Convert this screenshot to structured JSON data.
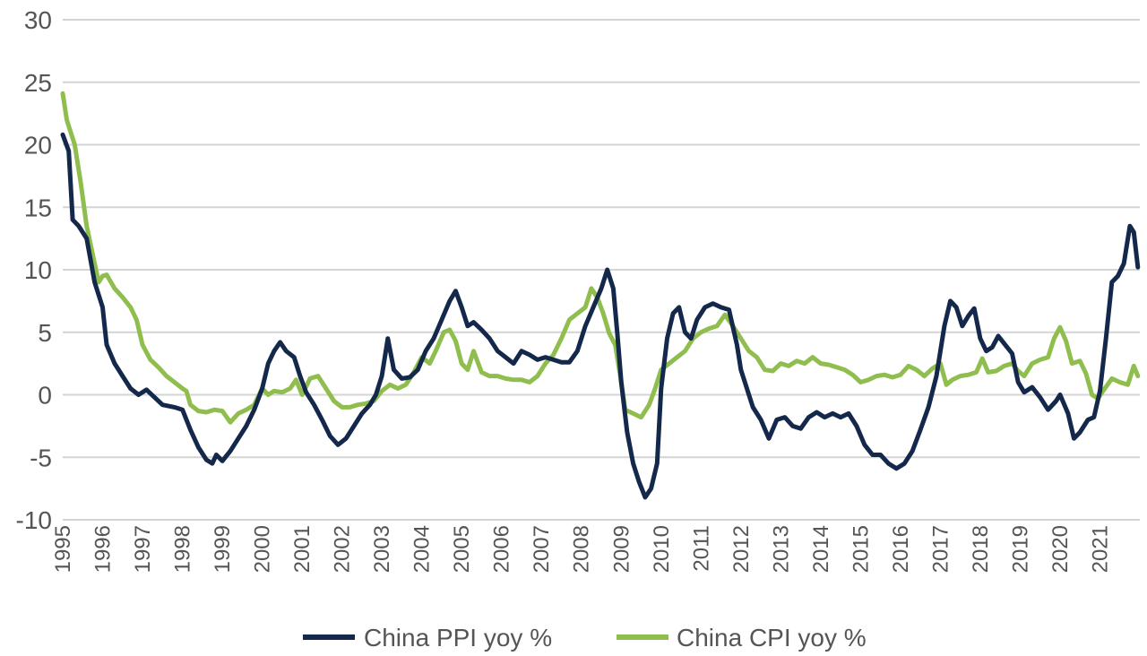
{
  "chart_data": {
    "type": "line",
    "title": "",
    "xlabel": "",
    "ylabel": "",
    "ylim": [
      -10,
      30
    ],
    "yticks": [
      -10,
      -5,
      0,
      5,
      10,
      15,
      20,
      25,
      30
    ],
    "xlim": [
      1995,
      2022
    ],
    "xticks": [
      "1995",
      "1996",
      "1997",
      "1998",
      "1999",
      "2000",
      "2001",
      "2002",
      "2003",
      "2004",
      "2005",
      "2006",
      "2007",
      "2008",
      "2009",
      "2010",
      "2011",
      "2012",
      "2013",
      "2014",
      "2015",
      "2016",
      "2017",
      "2018",
      "2019",
      "2020",
      "2021"
    ],
    "grid": true,
    "legend_position": "bottom",
    "series": [
      {
        "name": "China PPI yoy %",
        "color": "#14284b",
        "points": [
          [
            1995.0,
            20.8
          ],
          [
            1995.15,
            19.5
          ],
          [
            1995.25,
            14.0
          ],
          [
            1995.4,
            13.5
          ],
          [
            1995.6,
            12.5
          ],
          [
            1995.8,
            9.0
          ],
          [
            1996.0,
            7.0
          ],
          [
            1996.1,
            4.0
          ],
          [
            1996.3,
            2.5
          ],
          [
            1996.5,
            1.5
          ],
          [
            1996.7,
            0.5
          ],
          [
            1996.9,
            0.0
          ],
          [
            1997.1,
            0.4
          ],
          [
            1997.3,
            -0.2
          ],
          [
            1997.5,
            -0.8
          ],
          [
            1997.8,
            -1.0
          ],
          [
            1998.0,
            -1.2
          ],
          [
            1998.2,
            -2.8
          ],
          [
            1998.4,
            -4.2
          ],
          [
            1998.6,
            -5.2
          ],
          [
            1998.75,
            -5.5
          ],
          [
            1998.85,
            -4.8
          ],
          [
            1999.0,
            -5.3
          ],
          [
            1999.2,
            -4.5
          ],
          [
            1999.4,
            -3.5
          ],
          [
            1999.6,
            -2.5
          ],
          [
            1999.8,
            -1.2
          ],
          [
            2000.0,
            0.5
          ],
          [
            2000.15,
            2.5
          ],
          [
            2000.3,
            3.5
          ],
          [
            2000.45,
            4.2
          ],
          [
            2000.6,
            3.5
          ],
          [
            2000.8,
            3.0
          ],
          [
            2000.95,
            1.5
          ],
          [
            2001.1,
            0.2
          ],
          [
            2001.3,
            -0.8
          ],
          [
            2001.5,
            -2.0
          ],
          [
            2001.7,
            -3.3
          ],
          [
            2001.9,
            -4.0
          ],
          [
            2002.1,
            -3.5
          ],
          [
            2002.3,
            -2.5
          ],
          [
            2002.5,
            -1.5
          ],
          [
            2002.7,
            -0.8
          ],
          [
            2002.85,
            0.0
          ],
          [
            2003.0,
            1.5
          ],
          [
            2003.15,
            4.5
          ],
          [
            2003.3,
            2.0
          ],
          [
            2003.5,
            1.3
          ],
          [
            2003.7,
            1.4
          ],
          [
            2003.9,
            2.0
          ],
          [
            2004.1,
            3.5
          ],
          [
            2004.3,
            4.5
          ],
          [
            2004.5,
            6.0
          ],
          [
            2004.7,
            7.5
          ],
          [
            2004.85,
            8.3
          ],
          [
            2005.0,
            7.0
          ],
          [
            2005.15,
            5.5
          ],
          [
            2005.3,
            5.8
          ],
          [
            2005.5,
            5.2
          ],
          [
            2005.7,
            4.5
          ],
          [
            2005.9,
            3.5
          ],
          [
            2006.1,
            3.0
          ],
          [
            2006.3,
            2.5
          ],
          [
            2006.5,
            3.5
          ],
          [
            2006.7,
            3.2
          ],
          [
            2006.9,
            2.8
          ],
          [
            2007.1,
            3.0
          ],
          [
            2007.3,
            2.8
          ],
          [
            2007.5,
            2.6
          ],
          [
            2007.7,
            2.6
          ],
          [
            2007.9,
            3.5
          ],
          [
            2008.1,
            5.5
          ],
          [
            2008.3,
            7.0
          ],
          [
            2008.5,
            8.5
          ],
          [
            2008.65,
            10.0
          ],
          [
            2008.8,
            8.5
          ],
          [
            2008.9,
            5.0
          ],
          [
            2009.0,
            1.0
          ],
          [
            2009.15,
            -3.0
          ],
          [
            2009.3,
            -5.5
          ],
          [
            2009.45,
            -7.0
          ],
          [
            2009.6,
            -8.2
          ],
          [
            2009.75,
            -7.5
          ],
          [
            2009.9,
            -5.5
          ],
          [
            2010.0,
            0.5
          ],
          [
            2010.15,
            4.5
          ],
          [
            2010.3,
            6.5
          ],
          [
            2010.45,
            7.0
          ],
          [
            2010.6,
            5.0
          ],
          [
            2010.75,
            4.5
          ],
          [
            2010.9,
            6.0
          ],
          [
            2011.1,
            7.0
          ],
          [
            2011.3,
            7.3
          ],
          [
            2011.5,
            7.0
          ],
          [
            2011.7,
            6.8
          ],
          [
            2011.9,
            4.0
          ],
          [
            2012.0,
            2.0
          ],
          [
            2012.15,
            0.5
          ],
          [
            2012.3,
            -1.0
          ],
          [
            2012.5,
            -2.0
          ],
          [
            2012.7,
            -3.5
          ],
          [
            2012.9,
            -2.0
          ],
          [
            2013.1,
            -1.8
          ],
          [
            2013.3,
            -2.5
          ],
          [
            2013.5,
            -2.7
          ],
          [
            2013.7,
            -1.8
          ],
          [
            2013.9,
            -1.4
          ],
          [
            2014.1,
            -1.8
          ],
          [
            2014.3,
            -1.5
          ],
          [
            2014.5,
            -1.8
          ],
          [
            2014.7,
            -1.5
          ],
          [
            2014.9,
            -2.5
          ],
          [
            2015.1,
            -4.0
          ],
          [
            2015.3,
            -4.8
          ],
          [
            2015.5,
            -4.8
          ],
          [
            2015.7,
            -5.5
          ],
          [
            2015.9,
            -5.9
          ],
          [
            2016.1,
            -5.5
          ],
          [
            2016.3,
            -4.5
          ],
          [
            2016.5,
            -2.8
          ],
          [
            2016.7,
            -1.0
          ],
          [
            2016.9,
            1.5
          ],
          [
            2017.1,
            5.5
          ],
          [
            2017.25,
            7.5
          ],
          [
            2017.4,
            7.0
          ],
          [
            2017.55,
            5.5
          ],
          [
            2017.7,
            6.3
          ],
          [
            2017.85,
            6.9
          ],
          [
            2018.0,
            4.5
          ],
          [
            2018.15,
            3.5
          ],
          [
            2018.3,
            3.8
          ],
          [
            2018.45,
            4.7
          ],
          [
            2018.6,
            4.1
          ],
          [
            2018.8,
            3.3
          ],
          [
            2018.95,
            1.0
          ],
          [
            2019.1,
            0.2
          ],
          [
            2019.3,
            0.6
          ],
          [
            2019.5,
            -0.2
          ],
          [
            2019.7,
            -1.2
          ],
          [
            2019.9,
            -0.5
          ],
          [
            2020.0,
            0.0
          ],
          [
            2020.2,
            -1.5
          ],
          [
            2020.35,
            -3.5
          ],
          [
            2020.5,
            -3.0
          ],
          [
            2020.7,
            -2.0
          ],
          [
            2020.85,
            -1.8
          ],
          [
            2021.0,
            0.3
          ],
          [
            2021.15,
            4.5
          ],
          [
            2021.3,
            9.0
          ],
          [
            2021.45,
            9.5
          ],
          [
            2021.6,
            10.5
          ],
          [
            2021.75,
            13.5
          ],
          [
            2021.85,
            13.0
          ],
          [
            2021.95,
            10.2
          ]
        ]
      },
      {
        "name": "China CPI yoy %",
        "color": "#8fbe4f",
        "points": [
          [
            1995.0,
            24.1
          ],
          [
            1995.1,
            22.0
          ],
          [
            1995.2,
            21.0
          ],
          [
            1995.3,
            20.0
          ],
          [
            1995.45,
            17.0
          ],
          [
            1995.6,
            13.5
          ],
          [
            1995.8,
            10.5
          ],
          [
            1995.9,
            9.0
          ],
          [
            1996.0,
            9.5
          ],
          [
            1996.1,
            9.6
          ],
          [
            1996.3,
            8.5
          ],
          [
            1996.5,
            7.8
          ],
          [
            1996.7,
            7.0
          ],
          [
            1996.85,
            6.0
          ],
          [
            1997.0,
            4.0
          ],
          [
            1997.2,
            2.8
          ],
          [
            1997.4,
            2.2
          ],
          [
            1997.6,
            1.5
          ],
          [
            1997.8,
            1.0
          ],
          [
            1998.0,
            0.5
          ],
          [
            1998.1,
            0.3
          ],
          [
            1998.2,
            -0.8
          ],
          [
            1998.4,
            -1.3
          ],
          [
            1998.6,
            -1.4
          ],
          [
            1998.8,
            -1.2
          ],
          [
            1999.0,
            -1.3
          ],
          [
            1999.2,
            -2.2
          ],
          [
            1999.4,
            -1.5
          ],
          [
            1999.6,
            -1.2
          ],
          [
            1999.8,
            -0.8
          ],
          [
            2000.0,
            0.5
          ],
          [
            2000.15,
            0.0
          ],
          [
            2000.3,
            0.3
          ],
          [
            2000.5,
            0.2
          ],
          [
            2000.7,
            0.5
          ],
          [
            2000.85,
            1.2
          ],
          [
            2001.0,
            0.0
          ],
          [
            2001.2,
            1.3
          ],
          [
            2001.4,
            1.5
          ],
          [
            2001.6,
            0.5
          ],
          [
            2001.8,
            -0.5
          ],
          [
            2002.0,
            -1.0
          ],
          [
            2002.2,
            -1.0
          ],
          [
            2002.4,
            -0.8
          ],
          [
            2002.6,
            -0.7
          ],
          [
            2002.8,
            -0.5
          ],
          [
            2003.0,
            0.3
          ],
          [
            2003.2,
            0.8
          ],
          [
            2003.4,
            0.5
          ],
          [
            2003.6,
            0.8
          ],
          [
            2003.8,
            1.8
          ],
          [
            2004.0,
            3.0
          ],
          [
            2004.2,
            2.5
          ],
          [
            2004.35,
            3.5
          ],
          [
            2004.55,
            5.0
          ],
          [
            2004.7,
            5.2
          ],
          [
            2004.85,
            4.3
          ],
          [
            2005.0,
            2.5
          ],
          [
            2005.15,
            2.0
          ],
          [
            2005.3,
            3.5
          ],
          [
            2005.5,
            1.8
          ],
          [
            2005.7,
            1.5
          ],
          [
            2005.9,
            1.5
          ],
          [
            2006.1,
            1.3
          ],
          [
            2006.3,
            1.2
          ],
          [
            2006.5,
            1.2
          ],
          [
            2006.7,
            1.0
          ],
          [
            2006.9,
            1.5
          ],
          [
            2007.1,
            2.5
          ],
          [
            2007.3,
            3.2
          ],
          [
            2007.5,
            4.5
          ],
          [
            2007.7,
            6.0
          ],
          [
            2007.9,
            6.5
          ],
          [
            2008.1,
            7.0
          ],
          [
            2008.25,
            8.5
          ],
          [
            2008.4,
            7.8
          ],
          [
            2008.55,
            6.5
          ],
          [
            2008.7,
            4.9
          ],
          [
            2008.85,
            4.0
          ],
          [
            2009.0,
            1.0
          ],
          [
            2009.1,
            -1.2
          ],
          [
            2009.3,
            -1.5
          ],
          [
            2009.5,
            -1.8
          ],
          [
            2009.7,
            -0.8
          ],
          [
            2009.85,
            0.5
          ],
          [
            2010.0,
            2.0
          ],
          [
            2010.2,
            2.5
          ],
          [
            2010.4,
            3.0
          ],
          [
            2010.6,
            3.5
          ],
          [
            2010.8,
            4.5
          ],
          [
            2011.0,
            5.0
          ],
          [
            2011.2,
            5.3
          ],
          [
            2011.4,
            5.5
          ],
          [
            2011.6,
            6.4
          ],
          [
            2011.8,
            5.5
          ],
          [
            2012.0,
            4.5
          ],
          [
            2012.2,
            3.5
          ],
          [
            2012.4,
            3.0
          ],
          [
            2012.6,
            2.0
          ],
          [
            2012.8,
            1.9
          ],
          [
            2013.0,
            2.5
          ],
          [
            2013.2,
            2.3
          ],
          [
            2013.4,
            2.7
          ],
          [
            2013.6,
            2.5
          ],
          [
            2013.8,
            3.0
          ],
          [
            2014.0,
            2.5
          ],
          [
            2014.2,
            2.4
          ],
          [
            2014.4,
            2.2
          ],
          [
            2014.6,
            2.0
          ],
          [
            2014.8,
            1.6
          ],
          [
            2015.0,
            1.0
          ],
          [
            2015.2,
            1.2
          ],
          [
            2015.4,
            1.5
          ],
          [
            2015.6,
            1.6
          ],
          [
            2015.8,
            1.4
          ],
          [
            2016.0,
            1.6
          ],
          [
            2016.2,
            2.3
          ],
          [
            2016.4,
            2.0
          ],
          [
            2016.6,
            1.5
          ],
          [
            2016.8,
            2.1
          ],
          [
            2017.0,
            2.5
          ],
          [
            2017.15,
            0.8
          ],
          [
            2017.3,
            1.2
          ],
          [
            2017.5,
            1.5
          ],
          [
            2017.7,
            1.6
          ],
          [
            2017.9,
            1.8
          ],
          [
            2018.05,
            2.9
          ],
          [
            2018.2,
            1.8
          ],
          [
            2018.4,
            1.9
          ],
          [
            2018.6,
            2.3
          ],
          [
            2018.8,
            2.5
          ],
          [
            2018.95,
            1.9
          ],
          [
            2019.1,
            1.5
          ],
          [
            2019.3,
            2.5
          ],
          [
            2019.5,
            2.8
          ],
          [
            2019.7,
            3.0
          ],
          [
            2019.85,
            4.5
          ],
          [
            2020.0,
            5.4
          ],
          [
            2020.15,
            4.3
          ],
          [
            2020.3,
            2.5
          ],
          [
            2020.5,
            2.7
          ],
          [
            2020.65,
            1.7
          ],
          [
            2020.8,
            0.0
          ],
          [
            2020.95,
            -0.3
          ],
          [
            2021.1,
            0.4
          ],
          [
            2021.3,
            1.3
          ],
          [
            2021.5,
            1.0
          ],
          [
            2021.7,
            0.8
          ],
          [
            2021.85,
            2.3
          ],
          [
            2021.95,
            1.5
          ]
        ]
      }
    ]
  }
}
